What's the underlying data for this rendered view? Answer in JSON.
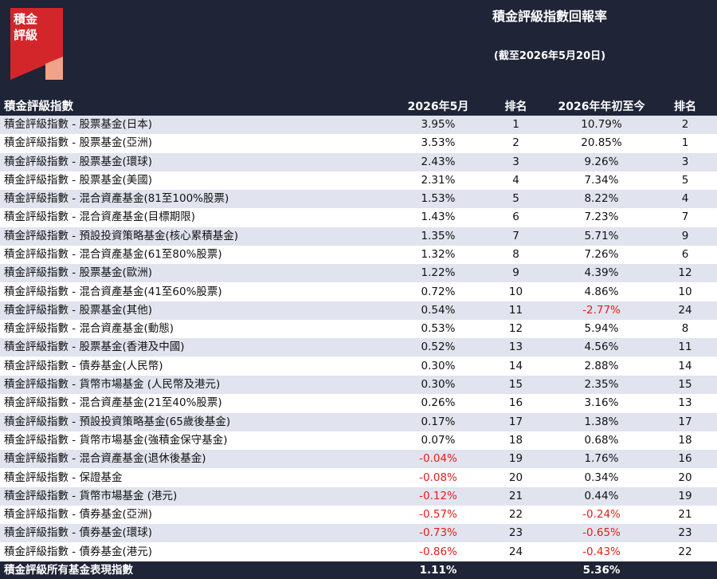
{
  "brand": {
    "logo_line1": "積金",
    "logo_line2": "評級",
    "logo_colors": {
      "red": "#d3262b",
      "salmon": "#f0a38a",
      "navy": "#1f2437"
    }
  },
  "report": {
    "title": "積金評級指數回報率",
    "subtitle": "(截至2026年5月20日)"
  },
  "table": {
    "columns": {
      "name": "積金評級指數",
      "may": "2026年5月",
      "rank_may": "排名",
      "ytd": "2026年年初至今",
      "rank_ytd": "排名"
    },
    "negative_color": "#e0201b",
    "rows": [
      {
        "name": "積金評級指數 - 股票基金(日本)",
        "may": "3.95%",
        "rank_may": "1",
        "ytd": "10.79%",
        "rank_ytd": "2"
      },
      {
        "name": "積金評級指數 - 股票基金(亞洲)",
        "may": "3.53%",
        "rank_may": "2",
        "ytd": "20.85%",
        "rank_ytd": "1"
      },
      {
        "name": "積金評級指數 - 股票基金(環球)",
        "may": "2.43%",
        "rank_may": "3",
        "ytd": "9.26%",
        "rank_ytd": "3"
      },
      {
        "name": "積金評級指數 - 股票基金(美國)",
        "may": "2.31%",
        "rank_may": "4",
        "ytd": "7.34%",
        "rank_ytd": "5"
      },
      {
        "name": "積金評級指數 - 混合資產基金(81至100%股票)",
        "may": "1.53%",
        "rank_may": "5",
        "ytd": "8.22%",
        "rank_ytd": "4"
      },
      {
        "name": "積金評級指數 - 混合資產基金(目標期限)",
        "may": "1.43%",
        "rank_may": "6",
        "ytd": "7.23%",
        "rank_ytd": "7"
      },
      {
        "name": "積金評級指數 - 預設投資策略基金(核心累積基金)",
        "may": "1.35%",
        "rank_may": "7",
        "ytd": "5.71%",
        "rank_ytd": "9"
      },
      {
        "name": "積金評級指數 - 混合資產基金(61至80%股票)",
        "may": "1.32%",
        "rank_may": "8",
        "ytd": "7.26%",
        "rank_ytd": "6"
      },
      {
        "name": "積金評級指數 - 股票基金(歐洲)",
        "may": "1.22%",
        "rank_may": "9",
        "ytd": "4.39%",
        "rank_ytd": "12"
      },
      {
        "name": "積金評級指數 - 混合資產基金(41至60%股票)",
        "may": "0.72%",
        "rank_may": "10",
        "ytd": "4.86%",
        "rank_ytd": "10"
      },
      {
        "name": "積金評級指數 - 股票基金(其他)",
        "may": "0.54%",
        "rank_may": "11",
        "ytd": "-2.77%",
        "rank_ytd": "24"
      },
      {
        "name": "積金評級指數 - 混合資產基金(動態)",
        "may": "0.53%",
        "rank_may": "12",
        "ytd": "5.94%",
        "rank_ytd": "8"
      },
      {
        "name": "積金評級指數 - 股票基金(香港及中國)",
        "may": "0.52%",
        "rank_may": "13",
        "ytd": "4.56%",
        "rank_ytd": "11"
      },
      {
        "name": "積金評級指數 - 債券基金(人民幣)",
        "may": "0.30%",
        "rank_may": "14",
        "ytd": "2.88%",
        "rank_ytd": "14"
      },
      {
        "name": "積金評級指數 - 貨幣市場基金 (人民幣及港元)",
        "may": "0.30%",
        "rank_may": "15",
        "ytd": "2.35%",
        "rank_ytd": "15"
      },
      {
        "name": "積金評級指數 - 混合資產基金(21至40%股票)",
        "may": "0.26%",
        "rank_may": "16",
        "ytd": "3.16%",
        "rank_ytd": "13"
      },
      {
        "name": "積金評級指數 - 預設投資策略基金(65歲後基金)",
        "may": "0.17%",
        "rank_may": "17",
        "ytd": "1.38%",
        "rank_ytd": "17"
      },
      {
        "name": "積金評級指數 - 貨幣市場基金(強積金保守基金)",
        "may": "0.07%",
        "rank_may": "18",
        "ytd": "0.68%",
        "rank_ytd": "18"
      },
      {
        "name": "積金評級指數 - 混合資產基金(退休後基金)",
        "may": "-0.04%",
        "rank_may": "19",
        "ytd": "1.76%",
        "rank_ytd": "16"
      },
      {
        "name": "積金評級指數 - 保證基金",
        "may": "-0.08%",
        "rank_may": "20",
        "ytd": "0.34%",
        "rank_ytd": "20"
      },
      {
        "name": "積金評級指數 - 貨幣市場基金 (港元)",
        "may": "-0.12%",
        "rank_may": "21",
        "ytd": "0.44%",
        "rank_ytd": "19"
      },
      {
        "name": "積金評級指數 - 債券基金(亞洲)",
        "may": "-0.57%",
        "rank_may": "22",
        "ytd": "-0.24%",
        "rank_ytd": "21"
      },
      {
        "name": "積金評級指數 - 債券基金(環球)",
        "may": "-0.73%",
        "rank_may": "23",
        "ytd": "-0.65%",
        "rank_ytd": "23"
      },
      {
        "name": "積金評級指數 - 債券基金(港元)",
        "may": "-0.86%",
        "rank_may": "24",
        "ytd": "-0.43%",
        "rank_ytd": "22"
      }
    ],
    "total": {
      "name": "積金評級所有基金表現指數",
      "may": "1.11%",
      "ytd": "5.36%"
    }
  }
}
